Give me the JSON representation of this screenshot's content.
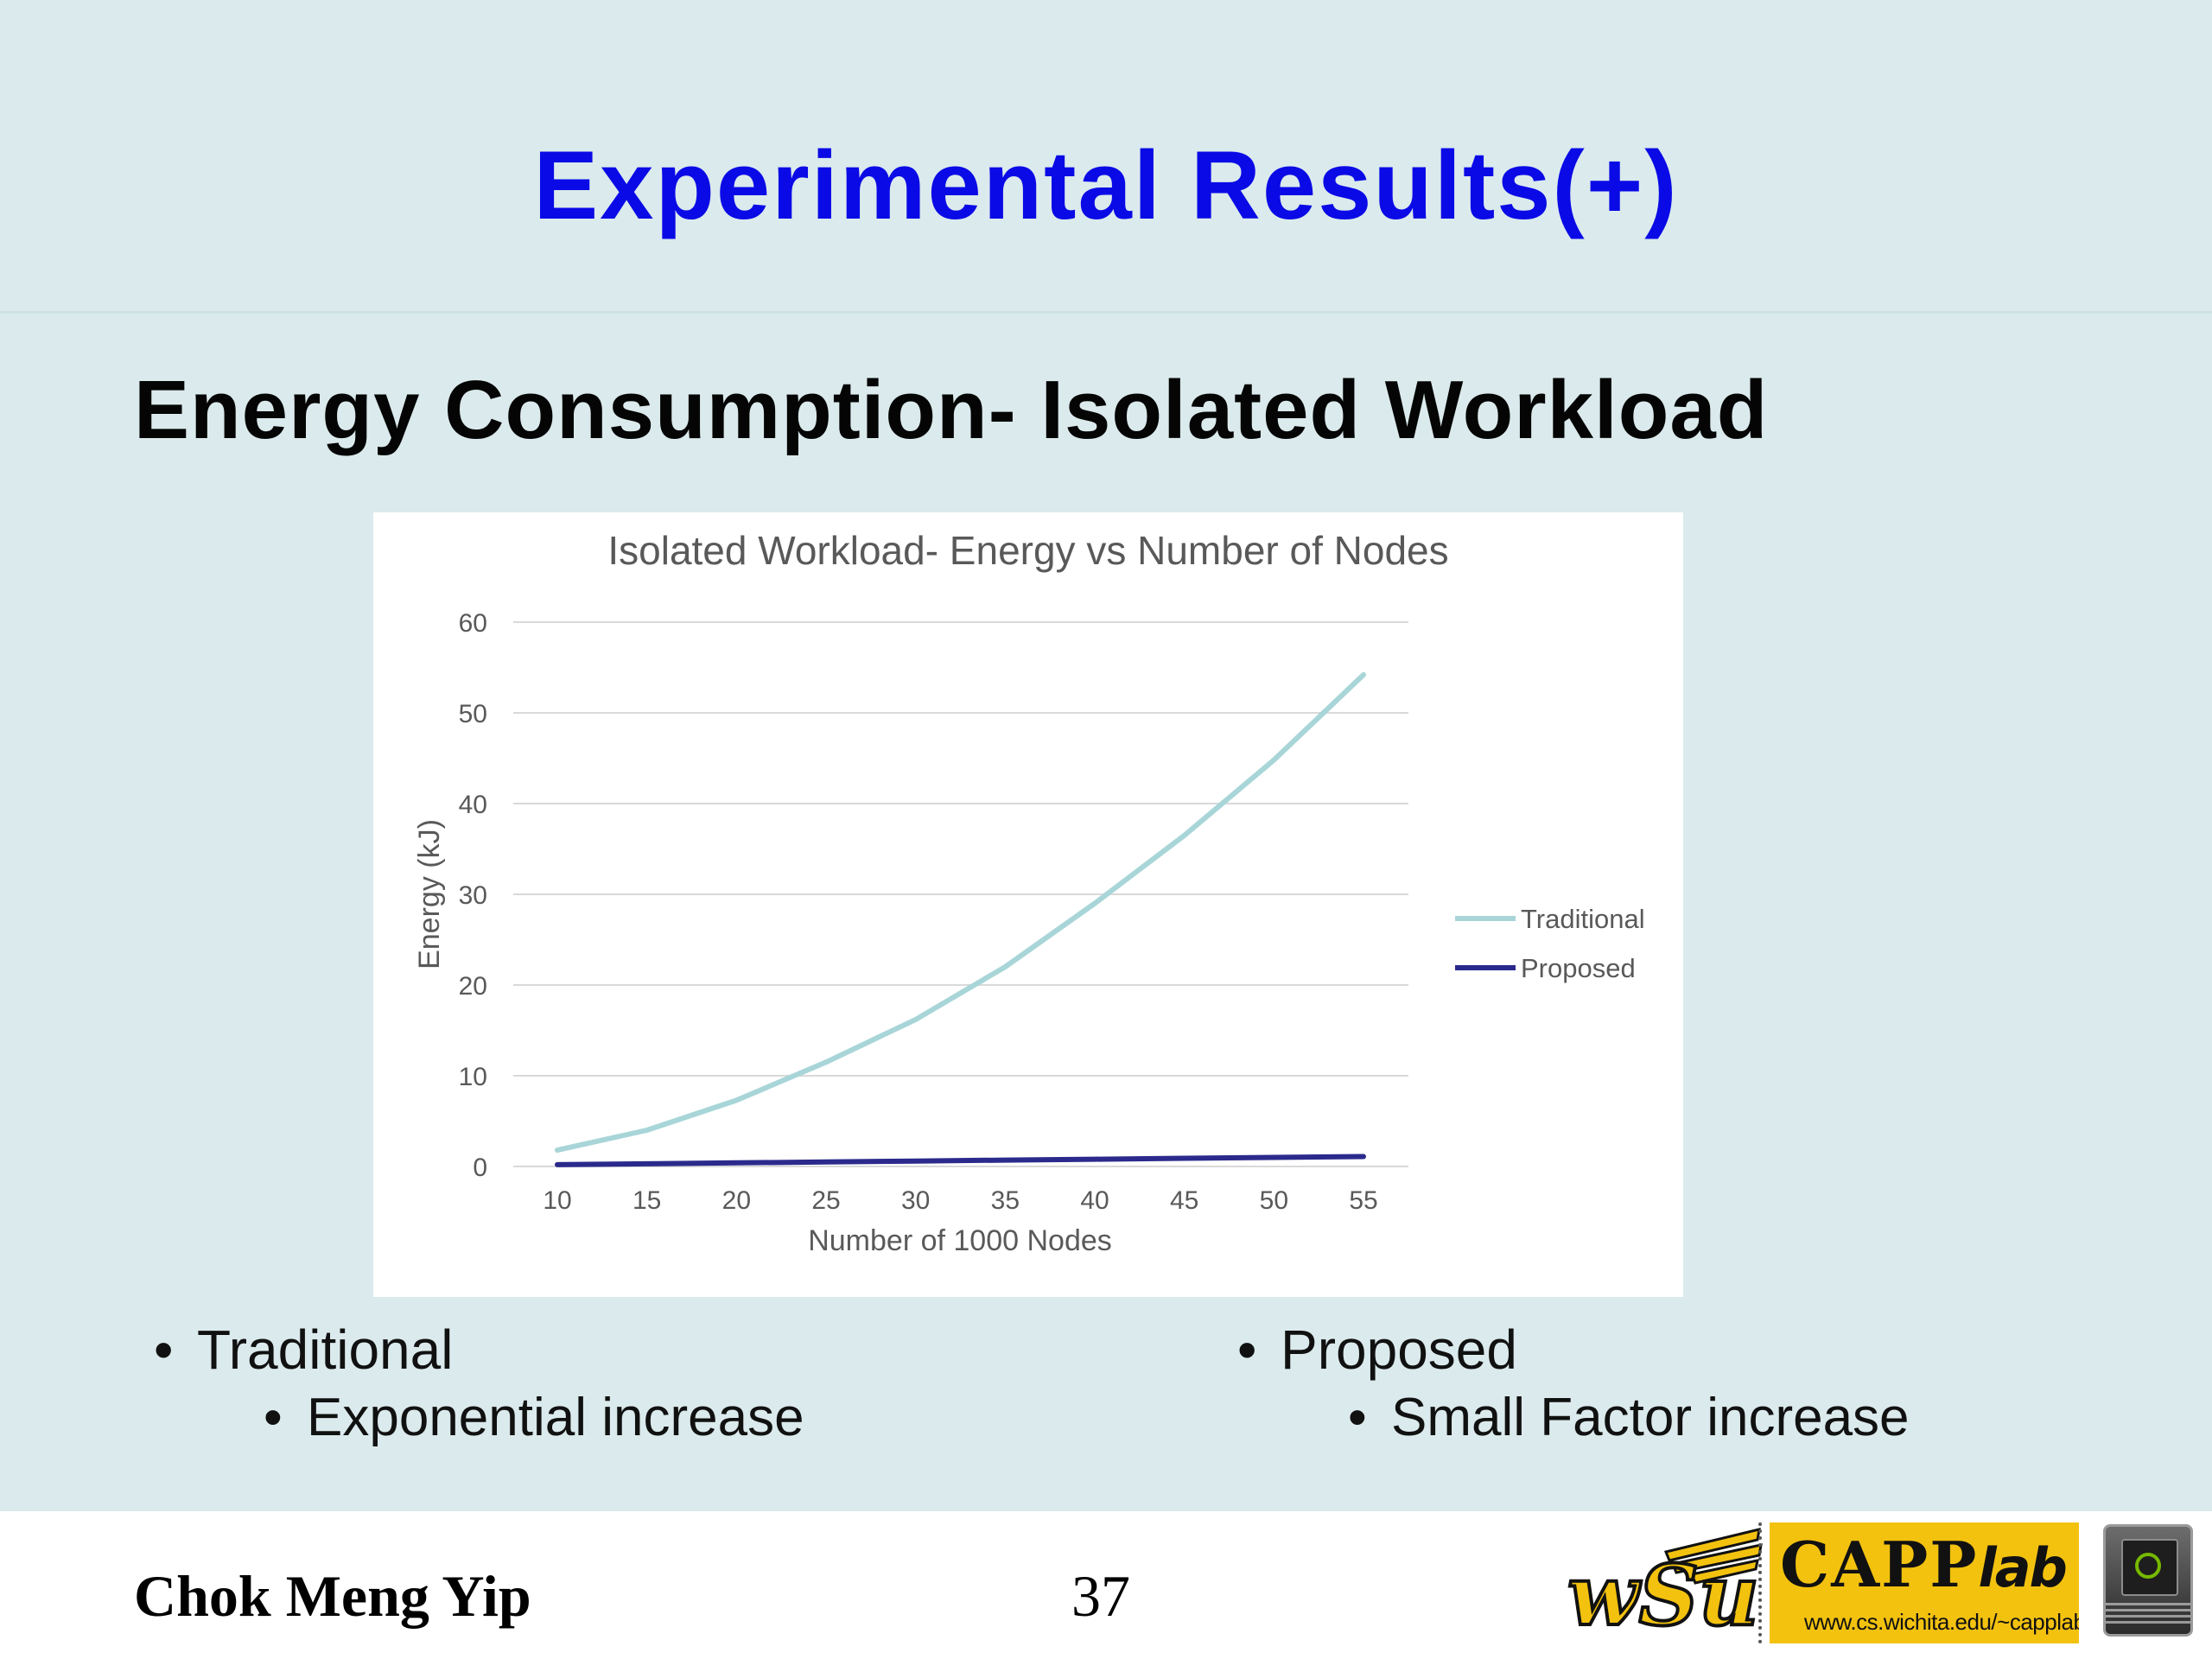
{
  "slide": {
    "title": "Experimental Results(+)",
    "subtitle": "Energy Consumption- Isolated Workload"
  },
  "bullets": {
    "left": {
      "main": "Traditional",
      "sub": "Exponential increase"
    },
    "right": {
      "main": "Proposed",
      "sub": "Small Factor increase"
    },
    "marker": "•"
  },
  "footer": {
    "author": "Chok Meng Yip",
    "page_number": "37",
    "capp_name": "CAPP",
    "capp_lab": "lab",
    "capp_url": "www.cs.wichita.edu/~capplab"
  },
  "colors": {
    "title": "#0a0ae6",
    "background": "#dbeaec",
    "traditional": "#a8d5d8",
    "proposed": "#2b2a8c"
  },
  "chart_data": {
    "type": "line",
    "title": "Isolated Workload- Energy vs Number of Nodes",
    "xlabel": "Number of 1000 Nodes",
    "ylabel": "Energy (kJ)",
    "categories": [
      10,
      15,
      20,
      25,
      30,
      35,
      40,
      45,
      50,
      55
    ],
    "ylim": [
      0,
      60
    ],
    "yticks": [
      0,
      10,
      20,
      30,
      40,
      50,
      60
    ],
    "grid": true,
    "legend_position": "right",
    "series": [
      {
        "name": "Traditional",
        "color": "#a8d5d8",
        "values": [
          1.8,
          4.0,
          7.3,
          11.5,
          16.2,
          22.0,
          29.0,
          36.5,
          44.8,
          54.2
        ]
      },
      {
        "name": "Proposed",
        "color": "#2b2a8c",
        "values": [
          0.2,
          0.3,
          0.4,
          0.5,
          0.6,
          0.7,
          0.8,
          0.9,
          1.0,
          1.1
        ]
      }
    ]
  }
}
